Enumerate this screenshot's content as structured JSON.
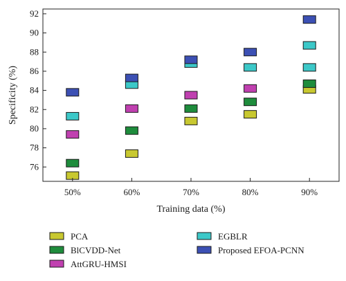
{
  "chart_data": {
    "type": "scatter",
    "marker": "square",
    "xlabel": "Training data (%)",
    "ylabel": "Specificity (%)",
    "categories": [
      "50%",
      "60%",
      "70%",
      "80%",
      "90%"
    ],
    "ylim": [
      74.5,
      92.5
    ],
    "yticks": [
      76,
      78,
      80,
      82,
      84,
      86,
      88,
      90,
      92
    ],
    "grid": false,
    "legend_position": "bottom",
    "series": [
      {
        "name": "PCA",
        "color": "#c8c830",
        "values": [
          75.1,
          77.4,
          80.8,
          81.5,
          84.1
        ]
      },
      {
        "name": "BlCVDD-Net",
        "color": "#1e8c3c",
        "values": [
          76.4,
          79.8,
          82.1,
          82.8,
          84.7
        ]
      },
      {
        "name": "AttGRU-HMSI",
        "color": "#c040b0",
        "values": [
          79.4,
          82.1,
          83.5,
          84.2,
          null
        ]
      },
      {
        "name": "EGBLR",
        "color": "#3cc8c8",
        "values": [
          81.3,
          84.6,
          86.8,
          86.4,
          86.4
        ]
      },
      {
        "name": "Proposed EFOA-PCNN",
        "color": "#3c50b4",
        "values": [
          83.8,
          85.3,
          87.2,
          88.0,
          91.4
        ]
      }
    ],
    "extra_points": [
      {
        "series": "EGBLR",
        "category": "90%",
        "value": 88.7
      }
    ]
  }
}
